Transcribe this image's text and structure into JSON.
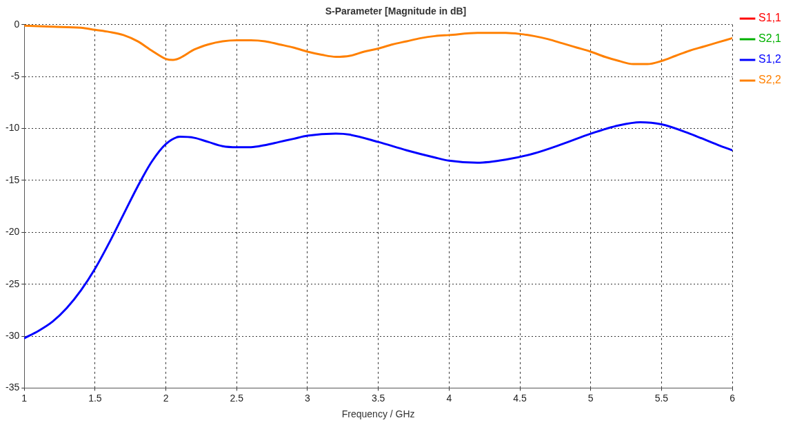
{
  "chart_data": {
    "type": "line",
    "title": "S-Parameter [Magnitude in dB]",
    "xlabel": "Frequency / GHz",
    "xlim": [
      1,
      6
    ],
    "xticks": [
      1,
      1.5,
      2,
      2.5,
      3,
      3.5,
      4,
      4.5,
      5,
      5.5,
      6
    ],
    "ylim": [
      -35,
      0
    ],
    "yticks": [
      -35,
      -30,
      -25,
      -20,
      -15,
      -10,
      -5,
      0
    ],
    "grid": true,
    "legend": "right",
    "marker": "none",
    "line_style": "solid",
    "series": [
      {
        "name": "S1,1",
        "color": "#ff0000"
      },
      {
        "name": "S2,1",
        "color": "#00b000"
      },
      {
        "name": "S1,2",
        "color": "#0000ff",
        "x": [
          1,
          1.1,
          1.2,
          1.3,
          1.4,
          1.5,
          1.6,
          1.7,
          1.8,
          1.9,
          2.0,
          2.1,
          2.2,
          2.3,
          2.4,
          2.5,
          2.6,
          2.7,
          2.8,
          2.9,
          3.0,
          3.2,
          3.3,
          3.5,
          3.7,
          3.9,
          4.0,
          4.2,
          4.4,
          4.6,
          4.8,
          5.0,
          5.2,
          5.35,
          5.5,
          5.7,
          5.9,
          6.0
        ],
        "values": [
          -30.2,
          -29.5,
          -28.6,
          -27.3,
          -25.6,
          -23.5,
          -21.0,
          -18.3,
          -15.6,
          -13.2,
          -11.5,
          -10.8,
          -10.9,
          -11.3,
          -11.7,
          -11.8,
          -11.8,
          -11.6,
          -11.3,
          -11.0,
          -10.7,
          -10.5,
          -10.6,
          -11.3,
          -12.1,
          -12.8,
          -13.1,
          -13.3,
          -13.0,
          -12.4,
          -11.5,
          -10.5,
          -9.7,
          -9.4,
          -9.6,
          -10.5,
          -11.6,
          -12.1
        ]
      },
      {
        "name": "S2,2",
        "color": "#ff8000",
        "x": [
          1,
          1.2,
          1.4,
          1.5,
          1.6,
          1.7,
          1.8,
          1.9,
          2.0,
          2.05,
          2.1,
          2.2,
          2.3,
          2.4,
          2.5,
          2.6,
          2.7,
          2.8,
          2.9,
          3.0,
          3.1,
          3.2,
          3.3,
          3.4,
          3.5,
          3.6,
          3.7,
          3.8,
          3.9,
          4.0,
          4.2,
          4.4,
          4.5,
          4.6,
          4.7,
          4.8,
          4.9,
          5.0,
          5.1,
          5.2,
          5.3,
          5.4,
          5.5,
          5.6,
          5.7,
          5.8,
          5.9,
          6.0
        ],
        "values": [
          -0.1,
          -0.2,
          -0.3,
          -0.5,
          -0.7,
          -1.0,
          -1.6,
          -2.5,
          -3.3,
          -3.4,
          -3.2,
          -2.4,
          -1.9,
          -1.6,
          -1.5,
          -1.5,
          -1.6,
          -1.9,
          -2.2,
          -2.6,
          -2.9,
          -3.1,
          -3.0,
          -2.6,
          -2.3,
          -1.9,
          -1.6,
          -1.3,
          -1.1,
          -1.0,
          -0.8,
          -0.8,
          -0.9,
          -1.1,
          -1.4,
          -1.8,
          -2.2,
          -2.6,
          -3.1,
          -3.5,
          -3.8,
          -3.8,
          -3.5,
          -3.0,
          -2.5,
          -2.1,
          -1.7,
          -1.3
        ]
      }
    ]
  }
}
